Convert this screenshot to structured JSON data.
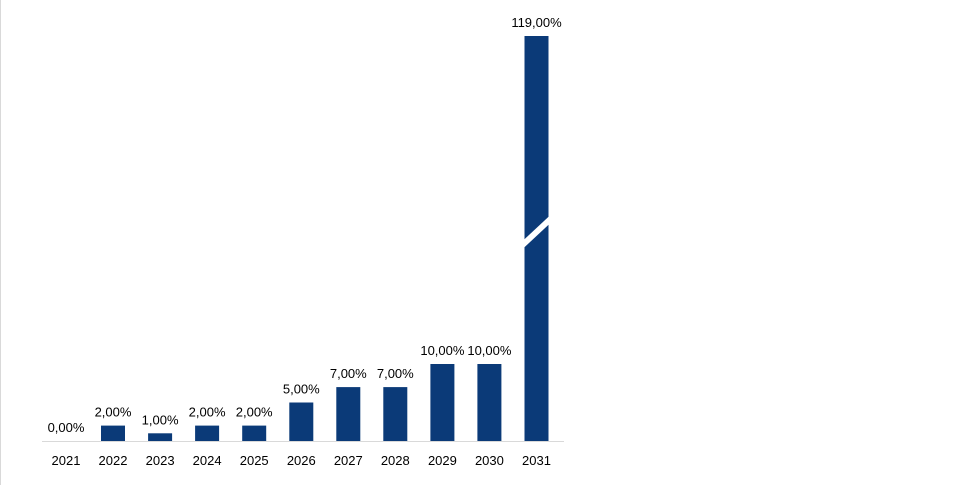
{
  "colors": {
    "bar": "#0b3a78",
    "axis": "#d9d9d9",
    "background": "#ffffff"
  },
  "chart_data": {
    "type": "bar",
    "title": "",
    "xlabel": "",
    "ylabel": "",
    "categories": [
      "2021",
      "2022",
      "2023",
      "2024",
      "2025",
      "2026",
      "2027",
      "2028",
      "2029",
      "2030",
      "2031"
    ],
    "values": [
      0,
      2,
      1,
      2,
      2,
      5,
      7,
      7,
      10,
      10,
      119
    ],
    "data_labels": [
      "0,00%",
      "2,00%",
      "1,00%",
      "2,00%",
      "2,00%",
      "5,00%",
      "7,00%",
      "7,00%",
      "10,00%",
      "10,00%",
      "119,00%"
    ],
    "broken_bar": "2031",
    "grid": false,
    "legend": "none"
  }
}
